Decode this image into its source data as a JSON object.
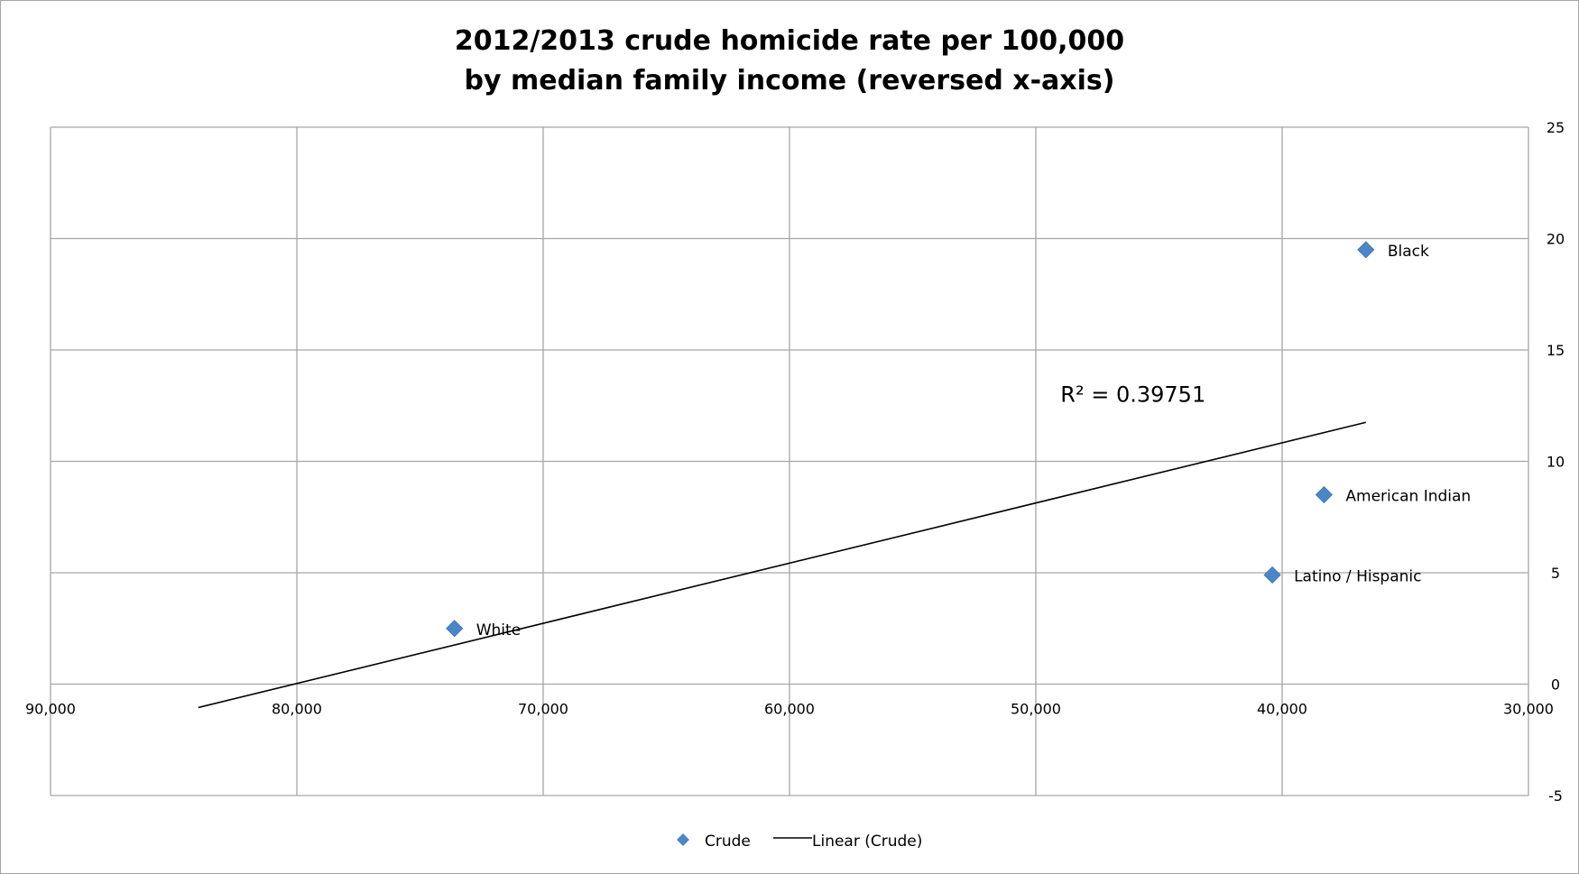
{
  "chart_data": {
    "type": "scatter",
    "title_line1": "2012/2013 crude homicide rate per 100,000",
    "title_line2": "by median family income (reversed x-axis)",
    "xlabel": "",
    "ylabel": "",
    "xlim": [
      30000,
      90000
    ],
    "x_reversed": true,
    "ylim": [
      -5,
      25
    ],
    "y_axis_position": "right",
    "grid": true,
    "x_ticks": [
      90000,
      80000,
      70000,
      60000,
      50000,
      40000,
      30000
    ],
    "x_tick_labels": [
      "90,000",
      "80,000",
      "70,000",
      "60,000",
      "50,000",
      "40,000",
      "30,000"
    ],
    "y_ticks": [
      -5,
      0,
      5,
      10,
      15,
      20,
      25
    ],
    "y_tick_labels": [
      "-5",
      "0",
      "5",
      "10",
      "15",
      "20",
      "25"
    ],
    "series": [
      {
        "name": "Crude",
        "marker": "diamond",
        "color": "#4a86c8",
        "points": [
          {
            "label": "White",
            "x": 73600,
            "y": 2.5
          },
          {
            "label": "Black",
            "x": 36600,
            "y": 19.5
          },
          {
            "label": "American Indian",
            "x": 38300,
            "y": 8.5
          },
          {
            "label": "Latino / Hispanic",
            "x": 40400,
            "y": 4.9
          }
        ]
      }
    ],
    "trendline": {
      "name": "Linear (Crude)",
      "type": "linear",
      "color": "#000000",
      "x": [
        84000,
        36600
      ],
      "y": [
        -1.05,
        11.75
      ],
      "r2_label": "R² = 0.39751",
      "r2_at": {
        "x": 49000,
        "y": 13
      }
    },
    "legend_placement": "bottom"
  }
}
